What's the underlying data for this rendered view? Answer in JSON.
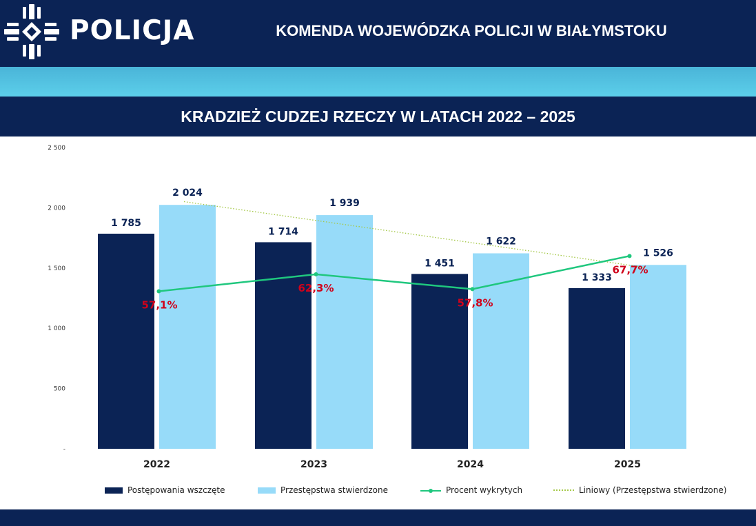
{
  "header": {
    "brand": "POLICJA",
    "title": "KOMENDA WOJEWÓDZKA POLICJI W BIAŁYMSTOKU",
    "logo_icon": "police-star-icon"
  },
  "colors": {
    "navy": "#0b2355",
    "band": "#5ccfea",
    "series_initiated": "#0b2355",
    "series_confirmed": "#97dbf9",
    "series_detection": "#1fc77e",
    "trendline": "#a6c94a",
    "percent_label": "#d0021b",
    "value_label": "#0b2355"
  },
  "chart_data": {
    "type": "bar",
    "title": "KRADZIEŻ CUDZEJ RZECZY W LATACH 2022 – 2025",
    "categories": [
      "2022",
      "2023",
      "2024",
      "2025"
    ],
    "ylim": [
      0,
      2500
    ],
    "yticks": [
      {
        "value": 0,
        "label": "-"
      },
      {
        "value": 500,
        "label": "500"
      },
      {
        "value": 1000,
        "label": "1 000"
      },
      {
        "value": 1500,
        "label": "1 500"
      },
      {
        "value": 2000,
        "label": "2 000"
      },
      {
        "value": 2500,
        "label": "2 500"
      }
    ],
    "grid": false,
    "legend_position": "bottom",
    "series": [
      {
        "name": "Postępowania wszczęte",
        "kind": "bar",
        "values": [
          1785,
          1714,
          1451,
          1333
        ],
        "labels": [
          "1 785",
          "1 714",
          "1 451",
          "1 333"
        ]
      },
      {
        "name": "Przestępstwa stwierdzone",
        "kind": "bar",
        "values": [
          2024,
          1939,
          1622,
          1526
        ],
        "labels": [
          "2 024",
          "1 939",
          "1 622",
          "1 526"
        ]
      },
      {
        "name": "Procent wykrytych",
        "kind": "line",
        "values": [
          57.1,
          62.3,
          57.8,
          67.7
        ],
        "labels": [
          "57,1%",
          "62,3%",
          "57,8%",
          "67,7%"
        ],
        "plotted_on_left_axis_approx": [
          1307,
          1448,
          1325,
          1600
        ]
      },
      {
        "name": "Liniowy (Przestępstwa stwierdzone)",
        "kind": "trendline",
        "values": [
          2051,
          1869,
          1688,
          1506
        ]
      }
    ]
  }
}
